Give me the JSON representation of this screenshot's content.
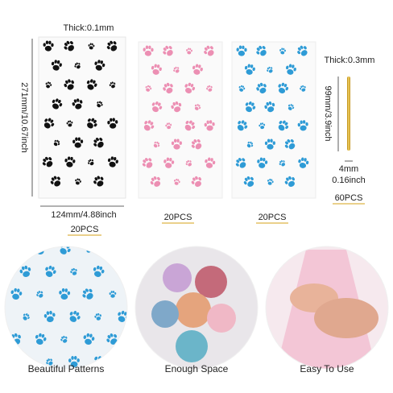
{
  "bags": [
    {
      "thickness": "Thick:0.1mm",
      "height": "271mm/10.67inch",
      "width": "124mm/4.88inch",
      "count": "20PCS"
    },
    {
      "count": "20PCS"
    },
    {
      "count": "20PCS"
    }
  ],
  "ties": {
    "thickness": "Thick:0.3mm",
    "length": "99mm/3.9inch",
    "width_mm": "4mm",
    "width_inch": "0.16inch",
    "count": "60PCS"
  },
  "features": [
    "Beautiful Patterns",
    "Enough Space",
    "Easy To Use"
  ]
}
